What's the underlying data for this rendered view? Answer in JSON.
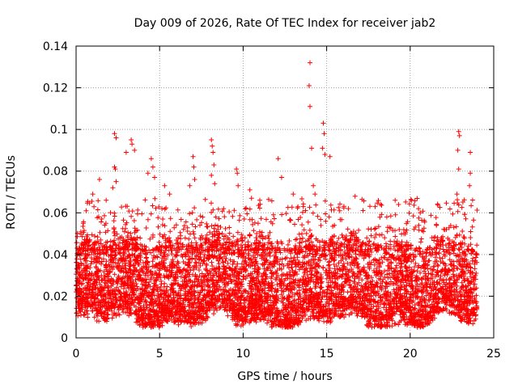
{
  "chart_data": {
    "type": "scatter",
    "title": "Day 009 of 2026, Rate Of TEC Index for receiver jab2",
    "xlabel": "GPS time / hours",
    "ylabel": "ROTI / TECUs",
    "xlim": [
      0,
      25
    ],
    "ylim": [
      0,
      0.14
    ],
    "xticks": [
      "0",
      "5",
      "10",
      "15",
      "20",
      "25"
    ],
    "yticks": [
      "0",
      "0.02",
      "0.04",
      "0.06",
      "0.08",
      "0.1",
      "0.12",
      "0.14"
    ],
    "grid": true,
    "marker": "+",
    "series_color": "#ff0000",
    "series": [
      {
        "name": "ROTI",
        "points": [
          [
            14.0,
            0.132
          ],
          [
            13.95,
            0.121
          ],
          [
            14.0,
            0.111
          ],
          [
            14.8,
            0.103
          ],
          [
            14.85,
            0.098
          ],
          [
            14.75,
            0.091
          ],
          [
            14.9,
            0.088
          ],
          [
            15.2,
            0.087
          ],
          [
            14.1,
            0.091
          ],
          [
            2.3,
            0.098
          ],
          [
            2.4,
            0.096
          ],
          [
            3.3,
            0.095
          ],
          [
            3.35,
            0.093
          ],
          [
            3.0,
            0.089
          ],
          [
            3.5,
            0.09
          ],
          [
            2.3,
            0.082
          ],
          [
            2.35,
            0.081
          ],
          [
            2.4,
            0.075
          ],
          [
            2.2,
            0.072
          ],
          [
            4.5,
            0.086
          ],
          [
            4.6,
            0.082
          ],
          [
            4.3,
            0.079
          ],
          [
            4.7,
            0.077
          ],
          [
            5.3,
            0.073
          ],
          [
            5.6,
            0.069
          ],
          [
            7.0,
            0.087
          ],
          [
            7.05,
            0.082
          ],
          [
            7.1,
            0.076
          ],
          [
            6.8,
            0.073
          ],
          [
            8.1,
            0.095
          ],
          [
            8.15,
            0.092
          ],
          [
            8.2,
            0.089
          ],
          [
            8.25,
            0.083
          ],
          [
            8.1,
            0.078
          ],
          [
            8.3,
            0.074
          ],
          [
            9.6,
            0.081
          ],
          [
            9.65,
            0.079
          ],
          [
            9.7,
            0.073
          ],
          [
            10.4,
            0.071
          ],
          [
            10.5,
            0.067
          ],
          [
            11.0,
            0.066
          ],
          [
            12.1,
            0.086
          ],
          [
            12.3,
            0.077
          ],
          [
            13.0,
            0.069
          ],
          [
            13.6,
            0.063
          ],
          [
            14.2,
            0.073
          ],
          [
            14.3,
            0.069
          ],
          [
            16.7,
            0.068
          ],
          [
            16.3,
            0.062
          ],
          [
            17.9,
            0.063
          ],
          [
            18.6,
            0.058
          ],
          [
            19.1,
            0.066
          ],
          [
            19.3,
            0.064
          ],
          [
            20.5,
            0.062
          ],
          [
            20.6,
            0.06
          ],
          [
            22.9,
            0.099
          ],
          [
            22.95,
            0.097
          ],
          [
            22.85,
            0.09
          ],
          [
            22.9,
            0.081
          ],
          [
            22.8,
            0.069
          ],
          [
            23.6,
            0.089
          ],
          [
            23.6,
            0.079
          ],
          [
            23.55,
            0.073
          ],
          [
            1.0,
            0.069
          ],
          [
            1.4,
            0.076
          ],
          [
            0.6,
            0.061
          ],
          [
            1.8,
            0.066
          ]
        ]
      }
    ],
    "cloud": {
      "x_range": [
        0,
        24
      ],
      "y_floor": 0.005,
      "band_low": 0.01,
      "band_high": 0.045,
      "dense_peak_y": 0.02
    }
  }
}
